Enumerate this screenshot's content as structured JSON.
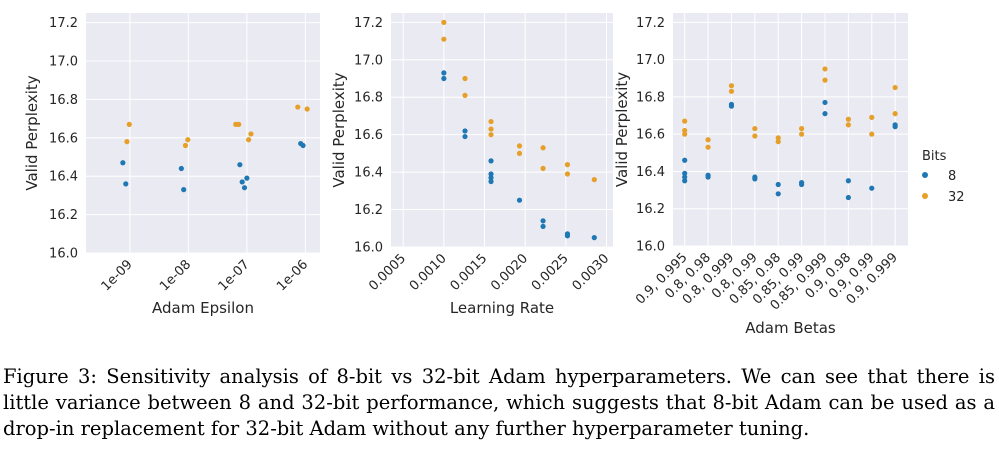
{
  "chart_data": [
    {
      "type": "scatter",
      "xlabel": "Adam Epsilon",
      "ylabel": "Valid Perplexity",
      "categories": [
        "1e-09",
        "1e-08",
        "1e-07",
        "1e-06"
      ],
      "ylim": [
        16.0,
        17.25
      ],
      "yticks": [
        "16.0",
        "16.2",
        "16.4",
        "16.6",
        "16.8",
        "17.0",
        "17.2"
      ],
      "grid": true,
      "series": [
        {
          "name": "8",
          "points": [
            {
              "x": 0.88,
              "y": 16.47
            },
            {
              "x": 0.93,
              "y": 16.36
            },
            {
              "x": 1.88,
              "y": 16.44
            },
            {
              "x": 1.92,
              "y": 16.33
            },
            {
              "x": 2.88,
              "y": 16.46
            },
            {
              "x": 2.92,
              "y": 16.37
            },
            {
              "x": 2.96,
              "y": 16.34
            },
            {
              "x": 3.0,
              "y": 16.39
            },
            {
              "x": 3.92,
              "y": 16.57
            },
            {
              "x": 3.96,
              "y": 16.56
            }
          ]
        },
        {
          "name": "32",
          "points": [
            {
              "x": 0.95,
              "y": 16.58
            },
            {
              "x": 0.99,
              "y": 16.67
            },
            {
              "x": 1.95,
              "y": 16.56
            },
            {
              "x": 1.99,
              "y": 16.59
            },
            {
              "x": 2.81,
              "y": 16.67
            },
            {
              "x": 2.86,
              "y": 16.67
            },
            {
              "x": 3.03,
              "y": 16.59
            },
            {
              "x": 3.07,
              "y": 16.62
            },
            {
              "x": 3.87,
              "y": 16.76
            },
            {
              "x": 4.03,
              "y": 16.75
            }
          ]
        }
      ]
    },
    {
      "type": "scatter",
      "xlabel": "Learning Rate",
      "ylabel": "Valid Perplexity",
      "xlim": [
        0.00035,
        0.00308
      ],
      "xticks": [
        "0.0005",
        "0.0010",
        "0.0015",
        "0.0020",
        "0.0025",
        "0.0030"
      ],
      "ylim": [
        16.0,
        17.25
      ],
      "yticks": [
        "16.0",
        "16.2",
        "16.4",
        "16.6",
        "16.8",
        "17.0",
        "17.2"
      ],
      "grid": true,
      "series": [
        {
          "name": "8",
          "points": [
            {
              "x": 0.001,
              "y": 16.93
            },
            {
              "x": 0.001,
              "y": 16.9
            },
            {
              "x": 0.00126,
              "y": 16.62
            },
            {
              "x": 0.00126,
              "y": 16.59
            },
            {
              "x": 0.00158,
              "y": 16.46
            },
            {
              "x": 0.00158,
              "y": 16.39
            },
            {
              "x": 0.00158,
              "y": 16.37
            },
            {
              "x": 0.00158,
              "y": 16.35
            },
            {
              "x": 0.00193,
              "y": 16.25
            },
            {
              "x": 0.00222,
              "y": 16.14
            },
            {
              "x": 0.00222,
              "y": 16.11
            },
            {
              "x": 0.00252,
              "y": 16.07
            },
            {
              "x": 0.00252,
              "y": 16.06
            },
            {
              "x": 0.00285,
              "y": 16.05
            }
          ]
        },
        {
          "name": "32",
          "points": [
            {
              "x": 0.001,
              "y": 17.2
            },
            {
              "x": 0.001,
              "y": 17.11
            },
            {
              "x": 0.00126,
              "y": 16.9
            },
            {
              "x": 0.00126,
              "y": 16.81
            },
            {
              "x": 0.00158,
              "y": 16.67
            },
            {
              "x": 0.00158,
              "y": 16.63
            },
            {
              "x": 0.00158,
              "y": 16.6
            },
            {
              "x": 0.00193,
              "y": 16.54
            },
            {
              "x": 0.00193,
              "y": 16.5
            },
            {
              "x": 0.00222,
              "y": 16.53
            },
            {
              "x": 0.00222,
              "y": 16.42
            },
            {
              "x": 0.00252,
              "y": 16.44
            },
            {
              "x": 0.00252,
              "y": 16.39
            },
            {
              "x": 0.00285,
              "y": 16.36
            }
          ]
        }
      ]
    },
    {
      "type": "scatter",
      "xlabel": "Adam Betas",
      "ylabel": "Valid Perplexity",
      "categories": [
        "0.9, 0.995",
        "0.8, 0.98",
        "0.8, 0.999",
        "0.8, 0.99",
        "0.85, 0.98",
        "0.85, 0.99",
        "0.85, 0.999",
        "0.9, 0.98",
        "0.9, 0.99",
        "0.9, 0.999"
      ],
      "ylim": [
        16.0,
        17.25
      ],
      "yticks": [
        "16.0",
        "16.2",
        "16.4",
        "16.6",
        "16.8",
        "17.0",
        "17.2"
      ],
      "grid": true,
      "legend": {
        "title": "Bits",
        "placement": "right"
      },
      "series": [
        {
          "name": "8",
          "color": "#1f77b4",
          "points": [
            {
              "x": 0,
              "y": 16.46
            },
            {
              "x": 0,
              "y": 16.39
            },
            {
              "x": 0,
              "y": 16.37
            },
            {
              "x": 0,
              "y": 16.35
            },
            {
              "x": 1,
              "y": 16.38
            },
            {
              "x": 1,
              "y": 16.37
            },
            {
              "x": 2,
              "y": 16.76
            },
            {
              "x": 2,
              "y": 16.75
            },
            {
              "x": 3,
              "y": 16.37
            },
            {
              "x": 3,
              "y": 16.36
            },
            {
              "x": 4,
              "y": 16.33
            },
            {
              "x": 4,
              "y": 16.28
            },
            {
              "x": 5,
              "y": 16.34
            },
            {
              "x": 5,
              "y": 16.33
            },
            {
              "x": 6,
              "y": 16.77
            },
            {
              "x": 6,
              "y": 16.71
            },
            {
              "x": 7,
              "y": 16.35
            },
            {
              "x": 7,
              "y": 16.26
            },
            {
              "x": 8,
              "y": 16.31
            },
            {
              "x": 9,
              "y": 16.65
            },
            {
              "x": 9,
              "y": 16.64
            }
          ]
        },
        {
          "name": "32",
          "color": "#e69f28",
          "points": [
            {
              "x": 0,
              "y": 16.67
            },
            {
              "x": 0,
              "y": 16.62
            },
            {
              "x": 0,
              "y": 16.6
            },
            {
              "x": 1,
              "y": 16.57
            },
            {
              "x": 1,
              "y": 16.53
            },
            {
              "x": 2,
              "y": 16.86
            },
            {
              "x": 2,
              "y": 16.83
            },
            {
              "x": 3,
              "y": 16.63
            },
            {
              "x": 3,
              "y": 16.59
            },
            {
              "x": 4,
              "y": 16.58
            },
            {
              "x": 4,
              "y": 16.56
            },
            {
              "x": 5,
              "y": 16.63
            },
            {
              "x": 5,
              "y": 16.6
            },
            {
              "x": 6,
              "y": 16.95
            },
            {
              "x": 6,
              "y": 16.89
            },
            {
              "x": 7,
              "y": 16.68
            },
            {
              "x": 7,
              "y": 16.65
            },
            {
              "x": 8,
              "y": 16.69
            },
            {
              "x": 8,
              "y": 16.6
            },
            {
              "x": 9,
              "y": 16.85
            },
            {
              "x": 9,
              "y": 16.71
            }
          ]
        }
      ]
    }
  ],
  "legend": {
    "title": "Bits",
    "items": [
      {
        "label": "8",
        "color": "#1f77b4"
      },
      {
        "label": "32",
        "color": "#e69f28"
      }
    ]
  },
  "colors": {
    "plot_background": "#eaeaf2",
    "grid": "#ffffff"
  },
  "caption": "Figure 3: Sensitivity analysis of 8-bit vs 32-bit Adam hyperparameters. We can see that there is little variance between 8 and 32-bit performance, which suggests that 8-bit Adam can be used as a drop-in replacement for 32-bit Adam without any further hyperparameter tuning."
}
